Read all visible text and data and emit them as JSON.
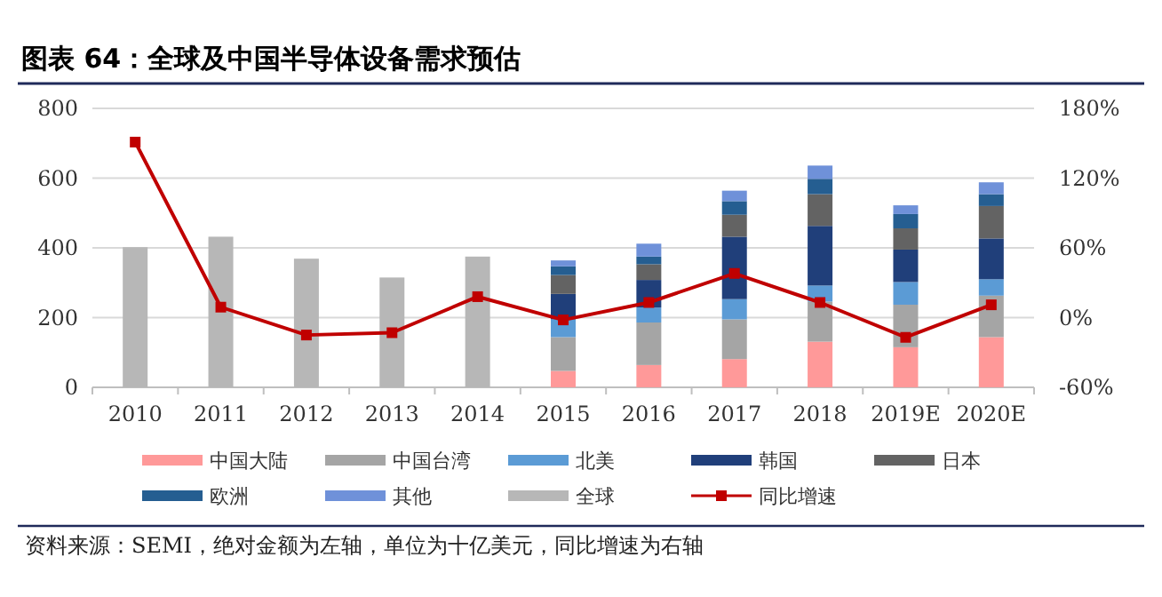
{
  "chart_data": {
    "type": "bar",
    "title": "**图表 64：**全球及中国半导体设备需求预估",
    "stacked": true,
    "grid": "y",
    "legend": "bottom",
    "categories": [
      "2010",
      "2011",
      "2012",
      "2013",
      "2014",
      "2015",
      "2016",
      "2017",
      "2018",
      "2019E",
      "2020E"
    ],
    "ylim": [
      0,
      800
    ],
    "yticks": [
      0,
      200,
      400,
      600,
      800
    ],
    "y2lim": [
      -60,
      180
    ],
    "y2ticks": [
      {
        "value": -60,
        "label": "-60%"
      },
      {
        "value": 0,
        "label": "0%"
      },
      {
        "value": 60,
        "label": "60%"
      },
      {
        "value": 120,
        "label": "120%"
      },
      {
        "value": 180,
        "label": "180%"
      }
    ],
    "series": [
      {
        "name": "中国大陆",
        "color": "#ff9999",
        "values": [
          null,
          null,
          null,
          null,
          null,
          47,
          64,
          81,
          131,
          115,
          144
        ]
      },
      {
        "name": "中国台湾",
        "color": "#a5a5a5",
        "values": [
          null,
          null,
          null,
          null,
          null,
          97,
          122,
          114,
          115,
          122,
          119
        ]
      },
      {
        "name": "北美",
        "color": "#5b9bd5",
        "values": [
          null,
          null,
          null,
          null,
          null,
          51,
          43,
          58,
          46,
          65,
          47
        ]
      },
      {
        "name": "韩国",
        "color": "#203f7a",
        "values": [
          null,
          null,
          null,
          null,
          null,
          73,
          79,
          179,
          171,
          93,
          117
        ]
      },
      {
        "name": "日本",
        "color": "#636363",
        "values": [
          null,
          null,
          null,
          null,
          null,
          54,
          45,
          63,
          91,
          61,
          93
        ]
      },
      {
        "name": "欧洲",
        "color": "#255e91",
        "values": [
          null,
          null,
          null,
          null,
          null,
          25,
          22,
          39,
          44,
          41,
          34
        ]
      },
      {
        "name": "其他",
        "color": "#6f91d9",
        "values": [
          null,
          null,
          null,
          null,
          null,
          17,
          37,
          30,
          38,
          25,
          34
        ]
      },
      {
        "name": "全球",
        "color": "#b7b7b7",
        "values": [
          402,
          432,
          369,
          315,
          375,
          null,
          null,
          null,
          null,
          null,
          null
        ]
      },
      {
        "name": "同比增速",
        "type": "line",
        "axis": "y2",
        "color": "#c00000",
        "marker": "square",
        "line_style": "solid",
        "values": [
          151,
          9,
          -15,
          -13,
          18,
          -2,
          13,
          38,
          13,
          -17,
          11
        ]
      }
    ],
    "annotations": [
      "资料来源：SEMI，绝对金额为左轴，单位为十亿美元，同比增速为右轴"
    ]
  }
}
